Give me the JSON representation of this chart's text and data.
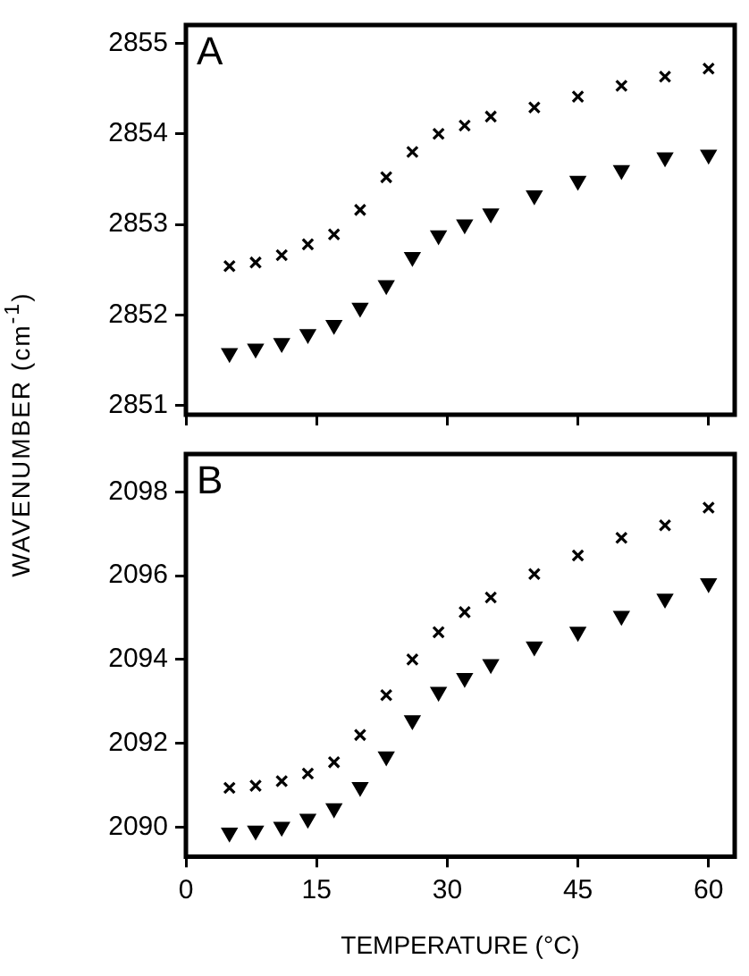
{
  "chart_data": [
    {
      "type": "scatter",
      "title": "A",
      "ylabel": "WAVENUMBER (cm$^{-1}$)",
      "xlim": [
        0,
        63
      ],
      "xticks": [
        0,
        15,
        30,
        45,
        60
      ],
      "ylim": [
        2850.9,
        2855.2
      ],
      "yticks": [
        2851,
        2852,
        2853,
        2854,
        2855
      ],
      "tick_labels": "y",
      "grid": false,
      "legend": false,
      "series": [
        {
          "color": "#000000",
          "marker": "cross",
          "x": [
            5,
            8,
            11,
            14,
            17,
            20,
            23,
            26,
            29,
            32,
            35,
            40,
            45,
            50,
            55,
            60
          ],
          "values": [
            2852.54,
            2852.58,
            2852.66,
            2852.78,
            2852.89,
            2853.16,
            2853.52,
            2853.8,
            2854.0,
            2854.09,
            2854.19,
            2854.29,
            2854.41,
            2854.53,
            2854.63,
            2854.72
          ]
        },
        {
          "color": "#000000",
          "marker": "triangle",
          "x": [
            5,
            8,
            11,
            14,
            17,
            20,
            23,
            26,
            29,
            32,
            35,
            40,
            45,
            50,
            55,
            60
          ],
          "values": [
            2851.58,
            2851.63,
            2851.69,
            2851.79,
            2851.89,
            2852.08,
            2852.33,
            2852.64,
            2852.88,
            2853.0,
            2853.12,
            2853.32,
            2853.48,
            2853.6,
            2853.74,
            2853.77
          ]
        }
      ]
    },
    {
      "type": "scatter",
      "title": "B",
      "xlabel": "TEMPERATURE (°C)",
      "xlim": [
        0,
        63
      ],
      "xticks": [
        0,
        15,
        30,
        45,
        60
      ],
      "ylim": [
        2089.3,
        2098.9
      ],
      "yticks": [
        2090,
        2092,
        2094,
        2096,
        2098
      ],
      "grid": false,
      "legend": false,
      "series": [
        {
          "color": "#000000",
          "marker": "cross",
          "x": [
            5,
            8,
            11,
            14,
            17,
            20,
            23,
            26,
            29,
            32,
            35,
            40,
            45,
            50,
            55,
            60
          ],
          "values": [
            2090.94,
            2090.99,
            2091.1,
            2091.28,
            2091.55,
            2092.2,
            2093.15,
            2094.0,
            2094.65,
            2095.13,
            2095.48,
            2096.04,
            2096.48,
            2096.9,
            2097.2,
            2097.62
          ]
        },
        {
          "color": "#000000",
          "marker": "triangle",
          "x": [
            5,
            8,
            11,
            14,
            17,
            20,
            23,
            26,
            29,
            32,
            35,
            40,
            45,
            50,
            55,
            60
          ],
          "values": [
            2089.87,
            2089.92,
            2090.01,
            2090.2,
            2090.45,
            2090.96,
            2091.69,
            2092.55,
            2093.23,
            2093.56,
            2093.89,
            2094.31,
            2094.66,
            2095.04,
            2095.45,
            2095.82
          ]
        }
      ]
    }
  ]
}
